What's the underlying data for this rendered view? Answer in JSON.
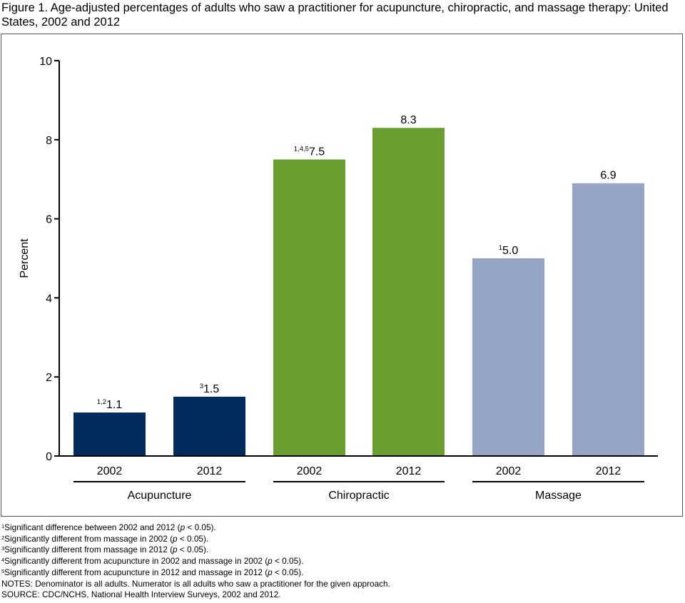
{
  "title": "Figure 1.  Age-adjusted percentages of adults who saw a practitioner for acupuncture, chiropractic, and massage therapy: United States, 2002 and 2012",
  "colors": {
    "acupuncture": "#002b5c",
    "chiropractic": "#6b9e30",
    "massage": "#96a5c6",
    "axis": "#000000",
    "frame": "#555555"
  },
  "chart_data": {
    "type": "bar",
    "title": "Age-adjusted percentages of adults who saw a practitioner for acupuncture, chiropractic, and massage therapy: United States, 2002 and 2012",
    "ylabel": "Percent",
    "xlabel": "",
    "ylim": [
      0,
      10
    ],
    "yticks": [
      0,
      2,
      4,
      6,
      8,
      10
    ],
    "grid": false,
    "legend": "none",
    "groups": [
      {
        "name": "Acupuncture",
        "color_key": "acupuncture",
        "bars": [
          {
            "year": "2002",
            "value": 1.1,
            "superscript": "1,2",
            "label": "1.1"
          },
          {
            "year": "2012",
            "value": 1.5,
            "superscript": "3",
            "label": "1.5"
          }
        ]
      },
      {
        "name": "Chiropractic",
        "color_key": "chiropractic",
        "bars": [
          {
            "year": "2002",
            "value": 7.5,
            "superscript": "1,4,5",
            "label": "7.5"
          },
          {
            "year": "2012",
            "value": 8.3,
            "superscript": "",
            "label": "8.3"
          }
        ]
      },
      {
        "name": "Massage",
        "color_key": "massage",
        "bars": [
          {
            "year": "2002",
            "value": 5.0,
            "superscript": "1",
            "label": "5.0"
          },
          {
            "year": "2012",
            "value": 6.9,
            "superscript": "",
            "label": "6.9"
          }
        ]
      }
    ]
  },
  "footnotes": [
    {
      "sup": "1",
      "text": "Significant difference between 2002 and 2012 (",
      "p": "p",
      "tail": " < 0.05)."
    },
    {
      "sup": "2",
      "text": "Significantly different from massage in 2002 (",
      "p": "p",
      "tail": " < 0.05)."
    },
    {
      "sup": "3",
      "text": "Significantly different from massage in 2012 (",
      "p": "p",
      "tail": " < 0.05)."
    },
    {
      "sup": "4",
      "text": "Significantly different from acupuncture in 2002 and massage in 2002 (",
      "p": "p",
      "tail": " < 0.05)."
    },
    {
      "sup": "5",
      "text": "Significantly different from acupuncture in 2012 and massage in 2012 (",
      "p": "p",
      "tail": " < 0.05)."
    }
  ],
  "notes": "NOTES: Denominator is all adults. Numerator is all adults who saw a practitioner for the given approach.",
  "source": "SOURCE: CDC/NCHS, National Health Interview Surveys, 2002 and 2012."
}
